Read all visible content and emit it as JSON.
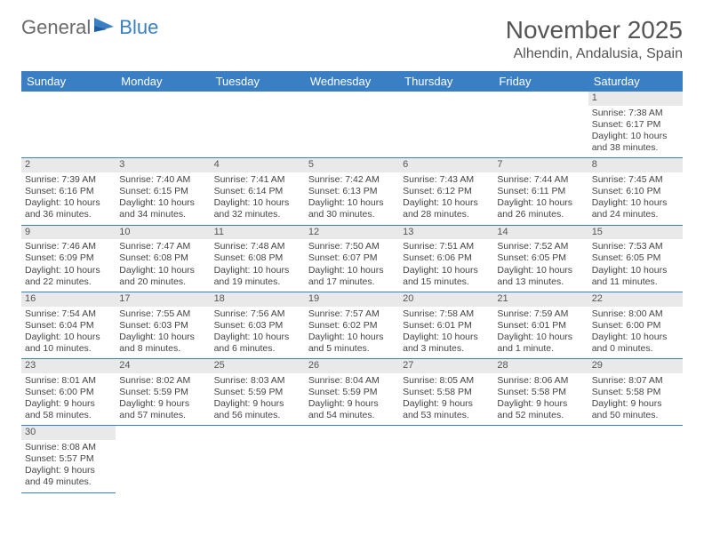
{
  "brand": {
    "part1": "General",
    "part2": "Blue"
  },
  "title": "November 2025",
  "location": "Alhendin, Andalusia, Spain",
  "colors": {
    "accent": "#3a7fc4",
    "header_text": "#ffffff",
    "daynum_bg": "#e9e9e9",
    "text": "#444444"
  },
  "day_headers": [
    "Sunday",
    "Monday",
    "Tuesday",
    "Wednesday",
    "Thursday",
    "Friday",
    "Saturday"
  ],
  "weeks": [
    [
      null,
      null,
      null,
      null,
      null,
      null,
      {
        "n": "1",
        "sr": "Sunrise: 7:38 AM",
        "ss": "Sunset: 6:17 PM",
        "d1": "Daylight: 10 hours",
        "d2": "and 38 minutes."
      }
    ],
    [
      {
        "n": "2",
        "sr": "Sunrise: 7:39 AM",
        "ss": "Sunset: 6:16 PM",
        "d1": "Daylight: 10 hours",
        "d2": "and 36 minutes."
      },
      {
        "n": "3",
        "sr": "Sunrise: 7:40 AM",
        "ss": "Sunset: 6:15 PM",
        "d1": "Daylight: 10 hours",
        "d2": "and 34 minutes."
      },
      {
        "n": "4",
        "sr": "Sunrise: 7:41 AM",
        "ss": "Sunset: 6:14 PM",
        "d1": "Daylight: 10 hours",
        "d2": "and 32 minutes."
      },
      {
        "n": "5",
        "sr": "Sunrise: 7:42 AM",
        "ss": "Sunset: 6:13 PM",
        "d1": "Daylight: 10 hours",
        "d2": "and 30 minutes."
      },
      {
        "n": "6",
        "sr": "Sunrise: 7:43 AM",
        "ss": "Sunset: 6:12 PM",
        "d1": "Daylight: 10 hours",
        "d2": "and 28 minutes."
      },
      {
        "n": "7",
        "sr": "Sunrise: 7:44 AM",
        "ss": "Sunset: 6:11 PM",
        "d1": "Daylight: 10 hours",
        "d2": "and 26 minutes."
      },
      {
        "n": "8",
        "sr": "Sunrise: 7:45 AM",
        "ss": "Sunset: 6:10 PM",
        "d1": "Daylight: 10 hours",
        "d2": "and 24 minutes."
      }
    ],
    [
      {
        "n": "9",
        "sr": "Sunrise: 7:46 AM",
        "ss": "Sunset: 6:09 PM",
        "d1": "Daylight: 10 hours",
        "d2": "and 22 minutes."
      },
      {
        "n": "10",
        "sr": "Sunrise: 7:47 AM",
        "ss": "Sunset: 6:08 PM",
        "d1": "Daylight: 10 hours",
        "d2": "and 20 minutes."
      },
      {
        "n": "11",
        "sr": "Sunrise: 7:48 AM",
        "ss": "Sunset: 6:08 PM",
        "d1": "Daylight: 10 hours",
        "d2": "and 19 minutes."
      },
      {
        "n": "12",
        "sr": "Sunrise: 7:50 AM",
        "ss": "Sunset: 6:07 PM",
        "d1": "Daylight: 10 hours",
        "d2": "and 17 minutes."
      },
      {
        "n": "13",
        "sr": "Sunrise: 7:51 AM",
        "ss": "Sunset: 6:06 PM",
        "d1": "Daylight: 10 hours",
        "d2": "and 15 minutes."
      },
      {
        "n": "14",
        "sr": "Sunrise: 7:52 AM",
        "ss": "Sunset: 6:05 PM",
        "d1": "Daylight: 10 hours",
        "d2": "and 13 minutes."
      },
      {
        "n": "15",
        "sr": "Sunrise: 7:53 AM",
        "ss": "Sunset: 6:05 PM",
        "d1": "Daylight: 10 hours",
        "d2": "and 11 minutes."
      }
    ],
    [
      {
        "n": "16",
        "sr": "Sunrise: 7:54 AM",
        "ss": "Sunset: 6:04 PM",
        "d1": "Daylight: 10 hours",
        "d2": "and 10 minutes."
      },
      {
        "n": "17",
        "sr": "Sunrise: 7:55 AM",
        "ss": "Sunset: 6:03 PM",
        "d1": "Daylight: 10 hours",
        "d2": "and 8 minutes."
      },
      {
        "n": "18",
        "sr": "Sunrise: 7:56 AM",
        "ss": "Sunset: 6:03 PM",
        "d1": "Daylight: 10 hours",
        "d2": "and 6 minutes."
      },
      {
        "n": "19",
        "sr": "Sunrise: 7:57 AM",
        "ss": "Sunset: 6:02 PM",
        "d1": "Daylight: 10 hours",
        "d2": "and 5 minutes."
      },
      {
        "n": "20",
        "sr": "Sunrise: 7:58 AM",
        "ss": "Sunset: 6:01 PM",
        "d1": "Daylight: 10 hours",
        "d2": "and 3 minutes."
      },
      {
        "n": "21",
        "sr": "Sunrise: 7:59 AM",
        "ss": "Sunset: 6:01 PM",
        "d1": "Daylight: 10 hours",
        "d2": "and 1 minute."
      },
      {
        "n": "22",
        "sr": "Sunrise: 8:00 AM",
        "ss": "Sunset: 6:00 PM",
        "d1": "Daylight: 10 hours",
        "d2": "and 0 minutes."
      }
    ],
    [
      {
        "n": "23",
        "sr": "Sunrise: 8:01 AM",
        "ss": "Sunset: 6:00 PM",
        "d1": "Daylight: 9 hours",
        "d2": "and 58 minutes."
      },
      {
        "n": "24",
        "sr": "Sunrise: 8:02 AM",
        "ss": "Sunset: 5:59 PM",
        "d1": "Daylight: 9 hours",
        "d2": "and 57 minutes."
      },
      {
        "n": "25",
        "sr": "Sunrise: 8:03 AM",
        "ss": "Sunset: 5:59 PM",
        "d1": "Daylight: 9 hours",
        "d2": "and 56 minutes."
      },
      {
        "n": "26",
        "sr": "Sunrise: 8:04 AM",
        "ss": "Sunset: 5:59 PM",
        "d1": "Daylight: 9 hours",
        "d2": "and 54 minutes."
      },
      {
        "n": "27",
        "sr": "Sunrise: 8:05 AM",
        "ss": "Sunset: 5:58 PM",
        "d1": "Daylight: 9 hours",
        "d2": "and 53 minutes."
      },
      {
        "n": "28",
        "sr": "Sunrise: 8:06 AM",
        "ss": "Sunset: 5:58 PM",
        "d1": "Daylight: 9 hours",
        "d2": "and 52 minutes."
      },
      {
        "n": "29",
        "sr": "Sunrise: 8:07 AM",
        "ss": "Sunset: 5:58 PM",
        "d1": "Daylight: 9 hours",
        "d2": "and 50 minutes."
      }
    ],
    [
      {
        "n": "30",
        "sr": "Sunrise: 8:08 AM",
        "ss": "Sunset: 5:57 PM",
        "d1": "Daylight: 9 hours",
        "d2": "and 49 minutes."
      },
      null,
      null,
      null,
      null,
      null,
      null
    ]
  ]
}
